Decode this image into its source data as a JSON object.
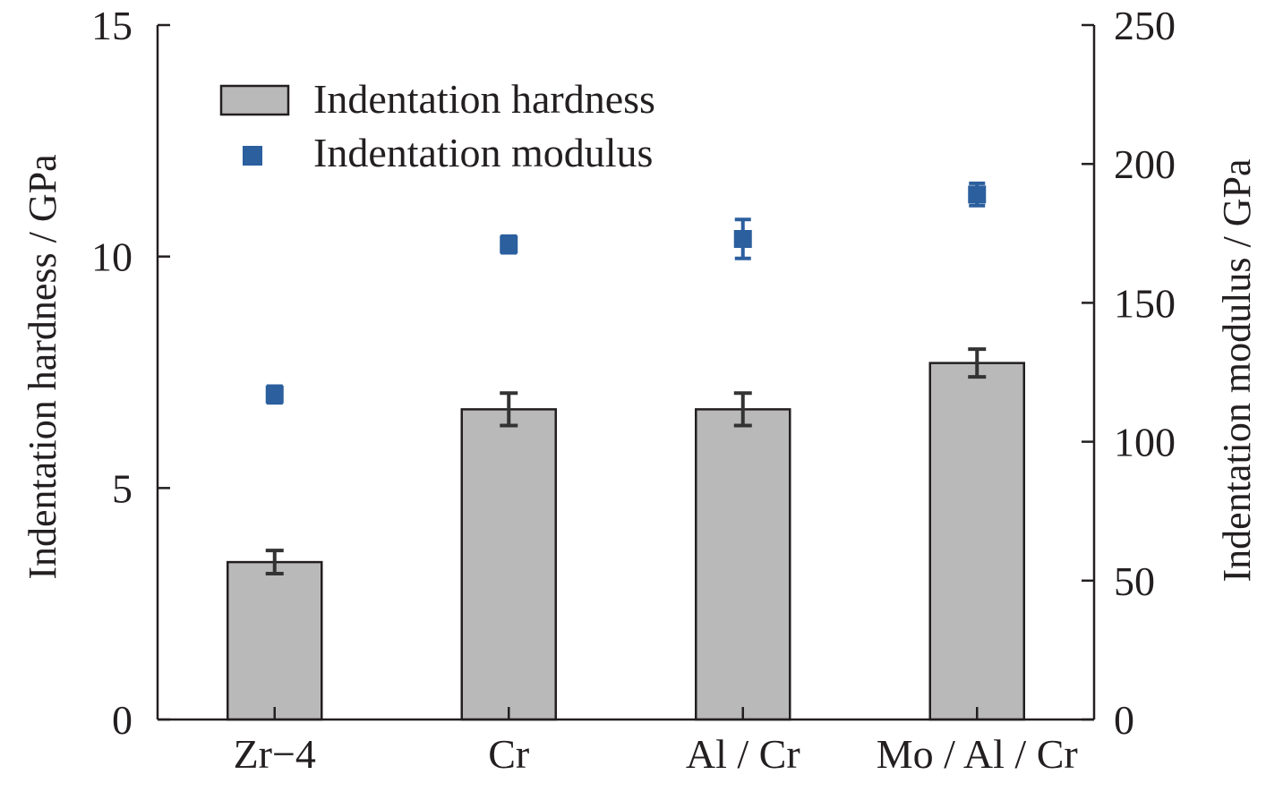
{
  "chart_data": {
    "type": "bar",
    "categories": [
      "Zr−4",
      "Cr",
      "Al / Cr",
      "Mo / Al / Cr"
    ],
    "series": [
      {
        "name": "Indentation hardness",
        "kind": "bar",
        "axis": "left",
        "values": [
          3.4,
          6.7,
          6.7,
          7.7
        ],
        "errors": [
          0.25,
          0.35,
          0.35,
          0.3
        ],
        "color": "#b9b9b9"
      },
      {
        "name": "Indentation modulus",
        "kind": "scatter",
        "axis": "right",
        "values": [
          117,
          171,
          173,
          189
        ],
        "errors": [
          3,
          3,
          7,
          4
        ],
        "color": "#2b5f9e"
      }
    ],
    "ylabel": "Indentation hardness / GPa",
    "ylabel_right": "Indentation modulus / GPa",
    "ylim": [
      0,
      15
    ],
    "ylim_right": [
      0,
      250
    ],
    "yticks": [
      "0",
      "5",
      "10",
      "15"
    ],
    "yticks_right": [
      "0",
      "50",
      "100",
      "150",
      "200",
      "250"
    ],
    "legend": "top-left",
    "grid": false
  }
}
